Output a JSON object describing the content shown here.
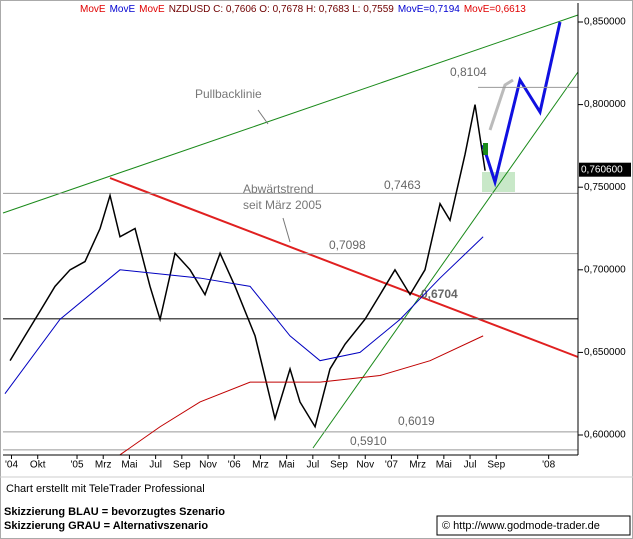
{
  "chart_data": {
    "type": "line",
    "header": [
      {
        "text": "MovE",
        "color": "#e00000"
      },
      {
        "text": "MovE",
        "color": "#0000d0"
      },
      {
        "text": "MovE",
        "color": "#e00000"
      },
      {
        "text": "NZDUSD C: 0,7606 O: 0,7678 H: 0,7683 L: 0,7559",
        "color": "#700000"
      },
      {
        "text": "MovE=0,7194",
        "color": "#0000d0"
      },
      {
        "text": "MovE=0,6613",
        "color": "#e00000"
      }
    ],
    "xlim": [
      6.35,
      50.24
    ],
    "xticks": [
      {
        "value": 7,
        "label": "'04"
      },
      {
        "value": 9,
        "label": "Okt"
      },
      {
        "value": 12,
        "label": "'05"
      },
      {
        "value": 14,
        "label": "Mrz"
      },
      {
        "value": 16,
        "label": "Mai"
      },
      {
        "value": 18,
        "label": "Jul"
      },
      {
        "value": 20,
        "label": "Sep"
      },
      {
        "value": 22,
        "label": "Nov"
      },
      {
        "value": 24,
        "label": "'06"
      },
      {
        "value": 26,
        "label": "Mrz"
      },
      {
        "value": 28,
        "label": "Mai"
      },
      {
        "value": 30,
        "label": "Jul"
      },
      {
        "value": 32,
        "label": "Sep"
      },
      {
        "value": 34,
        "label": "Nov"
      },
      {
        "value": 36,
        "label": "'07"
      },
      {
        "value": 38,
        "label": "Mrz"
      },
      {
        "value": 40,
        "label": "Mai"
      },
      {
        "value": 42,
        "label": "Jul"
      },
      {
        "value": 44,
        "label": "Sep"
      },
      {
        "value": 48,
        "label": "'08"
      }
    ],
    "ylim": [
      0.5879,
      0.8615
    ],
    "yticks": [
      {
        "value": 0.85,
        "label": "0,850000"
      },
      {
        "value": 0.8,
        "label": "0,800000"
      },
      {
        "value": 0.75,
        "label": "0,750000"
      },
      {
        "value": 0.7,
        "label": "0,700000"
      },
      {
        "value": 0.65,
        "label": "0,650000"
      },
      {
        "value": 0.6,
        "label": "0,600000"
      }
    ],
    "series": [
      {
        "color": "#000000",
        "x": [
          6.89,
          8.03,
          9.18,
          10.32,
          11.47,
          12.61,
          13.76,
          14.52,
          15.28,
          16.43,
          17.57,
          18.34,
          19.48,
          20.63,
          21.77,
          22.92,
          24.06,
          25.59,
          26.35,
          27.11,
          28.26,
          29.02,
          30.17,
          31.31,
          32.46,
          33.98,
          35.13,
          36.27,
          37.42,
          38.56,
          39.71,
          40.47,
          41.62,
          42.38,
          43.15
        ],
        "values": [
          0.645,
          0.66,
          0.675,
          0.69,
          0.7,
          0.705,
          0.725,
          0.745,
          0.72,
          0.725,
          0.69,
          0.67,
          0.71,
          0.7,
          0.685,
          0.71,
          0.69,
          0.66,
          0.635,
          0.61,
          0.64,
          0.62,
          0.605,
          0.64,
          0.655,
          0.67,
          0.685,
          0.7,
          0.685,
          0.7,
          0.74,
          0.73,
          0.77,
          0.8,
          0.76
        ]
      },
      {
        "color": "#0000c0",
        "x": [
          6.5,
          10.7,
          15.28,
          21.39,
          25.21,
          28.26,
          30.55,
          33.6,
          36.66,
          39.71,
          43.0
        ],
        "values": [
          0.625,
          0.67,
          0.7,
          0.695,
          0.69,
          0.66,
          0.645,
          0.65,
          0.67,
          0.695,
          0.72
        ]
      },
      {
        "color": "#c00000",
        "x": [
          15.28,
          18.34,
          21.39,
          25.21,
          30.55,
          35.13,
          38.95,
          43.0
        ],
        "values": [
          0.588,
          0.605,
          0.62,
          0.632,
          0.632,
          0.636,
          0.645,
          0.66
        ]
      }
    ],
    "levels": [
      {
        "value": 0.8104,
        "label": "0,8104"
      },
      {
        "value": 0.7463,
        "label": "0,7463"
      },
      {
        "value": 0.7098,
        "label": "0,7098"
      },
      {
        "value": 0.6704,
        "label": "0,6704"
      },
      {
        "value": 0.6019,
        "label": "0,6019"
      },
      {
        "value": 0.591,
        "label": "0,5910"
      }
    ],
    "last": {
      "value": 0.7606,
      "label": "0,760600"
    },
    "annotations": [
      "Pullbacklinie",
      "Abwärtstrend",
      "seit März 2005"
    ],
    "footer": {
      "credit": "Chart erstellt mit TeleTrader Professional",
      "blue": "Skizzierung BLAU = bevorzugtes Szenario",
      "gray": "Skizzierung GRAU = Alternativszenario",
      "url": "© http://www.godmode-trader.de"
    }
  }
}
